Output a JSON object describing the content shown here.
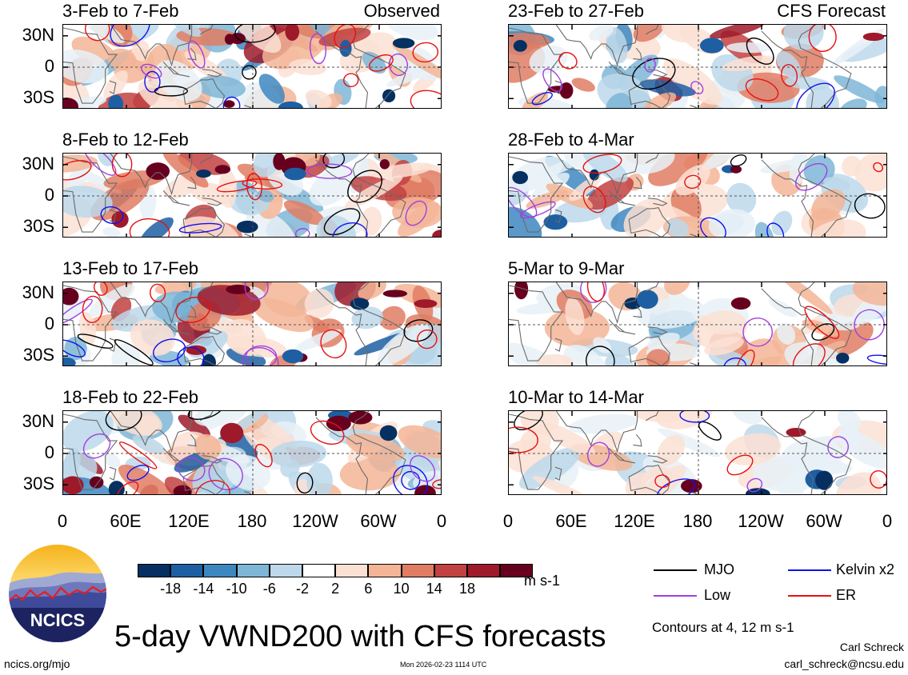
{
  "chart_data": {
    "type": "heatmap",
    "title": "5-day VWND200 with CFS forecasts",
    "variable": "VWND200",
    "units": "m s-1",
    "colorbar": {
      "levels": [
        -18,
        -14,
        -10,
        -6,
        -2,
        2,
        6,
        10,
        14,
        18
      ],
      "level_labels": [
        "-18",
        "-14",
        "-10",
        "-6",
        "-2",
        "2",
        "6",
        "10",
        "14",
        "18"
      ],
      "colors": [
        "#053061",
        "#1e5fa3",
        "#3d87c0",
        "#7eb6d7",
        "#bcd8ea",
        "#e8f1f7",
        "#ffffff",
        "#fbe1d4",
        "#f3b596",
        "#e07d63",
        "#c24141",
        "#9e1a2a",
        "#67001f"
      ]
    },
    "x_tick_labels": [
      "0",
      "60E",
      "120E",
      "180",
      "120W",
      "60W",
      "0"
    ],
    "y_tick_labels": [
      "30N",
      "0",
      "30S"
    ],
    "xlim_deg_east": [
      0,
      360
    ],
    "ylim_deg": [
      -40,
      40
    ],
    "panels": [
      {
        "period": "3-Feb to 7-Feb",
        "source": "Observed",
        "column": "left"
      },
      {
        "period": "8-Feb to 12-Feb",
        "source": "",
        "column": "left"
      },
      {
        "period": "13-Feb to 17-Feb",
        "source": "",
        "column": "left"
      },
      {
        "period": "18-Feb to 22-Feb",
        "source": "",
        "column": "left"
      },
      {
        "period": "23-Feb to 27-Feb",
        "source": "CFS Forecast",
        "column": "right"
      },
      {
        "period": "28-Feb to 4-Mar",
        "source": "",
        "column": "right"
      },
      {
        "period": "5-Mar to 9-Mar",
        "source": "",
        "column": "right"
      },
      {
        "period": "10-Mar to 14-Mar",
        "source": "",
        "column": "right"
      }
    ],
    "contour_legend": [
      {
        "label": "MJO",
        "color": "#000000"
      },
      {
        "label": "Kelvin x2",
        "color": "#1010ee"
      },
      {
        "label": "Low",
        "color": "#a040e0"
      },
      {
        "label": "ER",
        "color": "#e81010"
      }
    ],
    "contour_note": "Contours at 4, 12 m s-1"
  },
  "logo": {
    "text": "NCICS"
  },
  "footer": {
    "url": "ncics.org/mjo",
    "timestamp": "Mon 2026-02-23 1114 UTC",
    "author": "Carl Schreck",
    "email": "carl_schreck@ncsu.edu"
  }
}
